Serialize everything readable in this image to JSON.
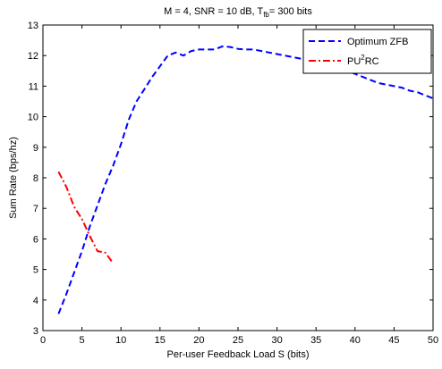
{
  "chart_data": {
    "type": "line",
    "title": {
      "prefix": "M  = 4, SNR = 10 dB, T",
      "subscript": "fb",
      "suffix": "= 300 bits"
    },
    "xlabel": "Per-user Feedback Load S (bits)",
    "ylabel": "Sum Rate (bps/hz)",
    "xlim": [
      0,
      50
    ],
    "ylim": [
      3,
      13
    ],
    "xticks": [
      0,
      5,
      10,
      15,
      20,
      25,
      30,
      35,
      40,
      45,
      50
    ],
    "yticks": [
      3,
      4,
      5,
      6,
      7,
      8,
      9,
      10,
      11,
      12,
      13
    ],
    "grid": false,
    "legend_position": "top-right",
    "series": [
      {
        "name": "Optimum ZFB",
        "color": "#0000ff",
        "line_style": "dashed",
        "x": [
          2,
          3,
          4,
          5,
          6,
          7,
          8,
          9,
          10,
          11,
          12,
          13,
          14,
          15,
          16,
          17,
          18,
          19,
          20,
          21,
          22,
          23,
          24,
          25,
          26,
          27,
          28,
          29,
          30,
          31,
          32,
          33,
          34,
          35,
          36,
          37,
          38,
          39,
          40,
          41,
          42,
          43,
          44,
          45,
          46,
          47,
          48,
          49,
          50
        ],
        "y": [
          3.55,
          4.2,
          4.9,
          5.6,
          6.4,
          7.1,
          7.8,
          8.4,
          9.1,
          9.9,
          10.5,
          10.9,
          11.3,
          11.65,
          12.0,
          12.1,
          12.0,
          12.15,
          12.2,
          12.2,
          12.2,
          12.3,
          12.28,
          12.22,
          12.2,
          12.2,
          12.15,
          12.1,
          12.05,
          12.0,
          11.95,
          11.9,
          11.85,
          11.8,
          11.75,
          11.7,
          11.6,
          11.5,
          11.4,
          11.3,
          11.2,
          11.1,
          11.05,
          11.0,
          10.95,
          10.85,
          10.8,
          10.7,
          10.6
        ]
      },
      {
        "name": "PU",
        "name_sup": "2",
        "name_suffix": "RC",
        "color": "#ff0000",
        "line_style": "dashdot",
        "x": [
          2,
          3,
          4,
          5,
          6,
          7,
          8,
          9
        ],
        "y": [
          8.2,
          7.7,
          7.05,
          6.65,
          6.1,
          5.6,
          5.55,
          5.2
        ]
      }
    ]
  }
}
